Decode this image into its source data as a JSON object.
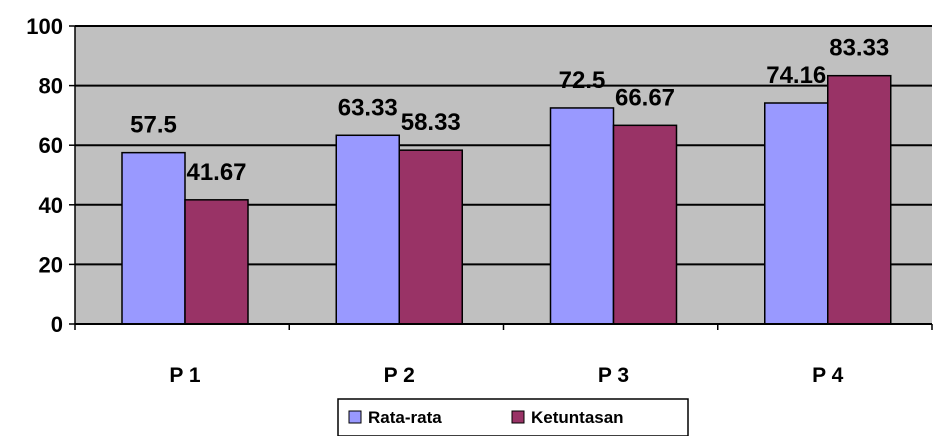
{
  "chart_data": {
    "type": "bar",
    "categories": [
      "P 1",
      "P 2",
      "P 3",
      "P 4"
    ],
    "series": [
      {
        "name": "Rata-rata",
        "values": [
          57.5,
          63.33,
          72.5,
          74.16
        ],
        "labels": [
          "57.5",
          "63.33",
          "72.5",
          "74.16"
        ],
        "color": "#9999ff"
      },
      {
        "name": "Ketuntasan",
        "values": [
          41.67,
          58.33,
          66.67,
          83.33
        ],
        "labels": [
          "41.67",
          "58.33",
          "66.67",
          "83.33"
        ],
        "color": "#993366"
      }
    ],
    "ylim": [
      0,
      100
    ],
    "yticks": [
      "0",
      "20",
      "40",
      "60",
      "80",
      "100"
    ],
    "grid": true,
    "plot_background": "#c0c0c0",
    "legend": "bottom",
    "title": "",
    "xlabel": "",
    "ylabel": ""
  }
}
